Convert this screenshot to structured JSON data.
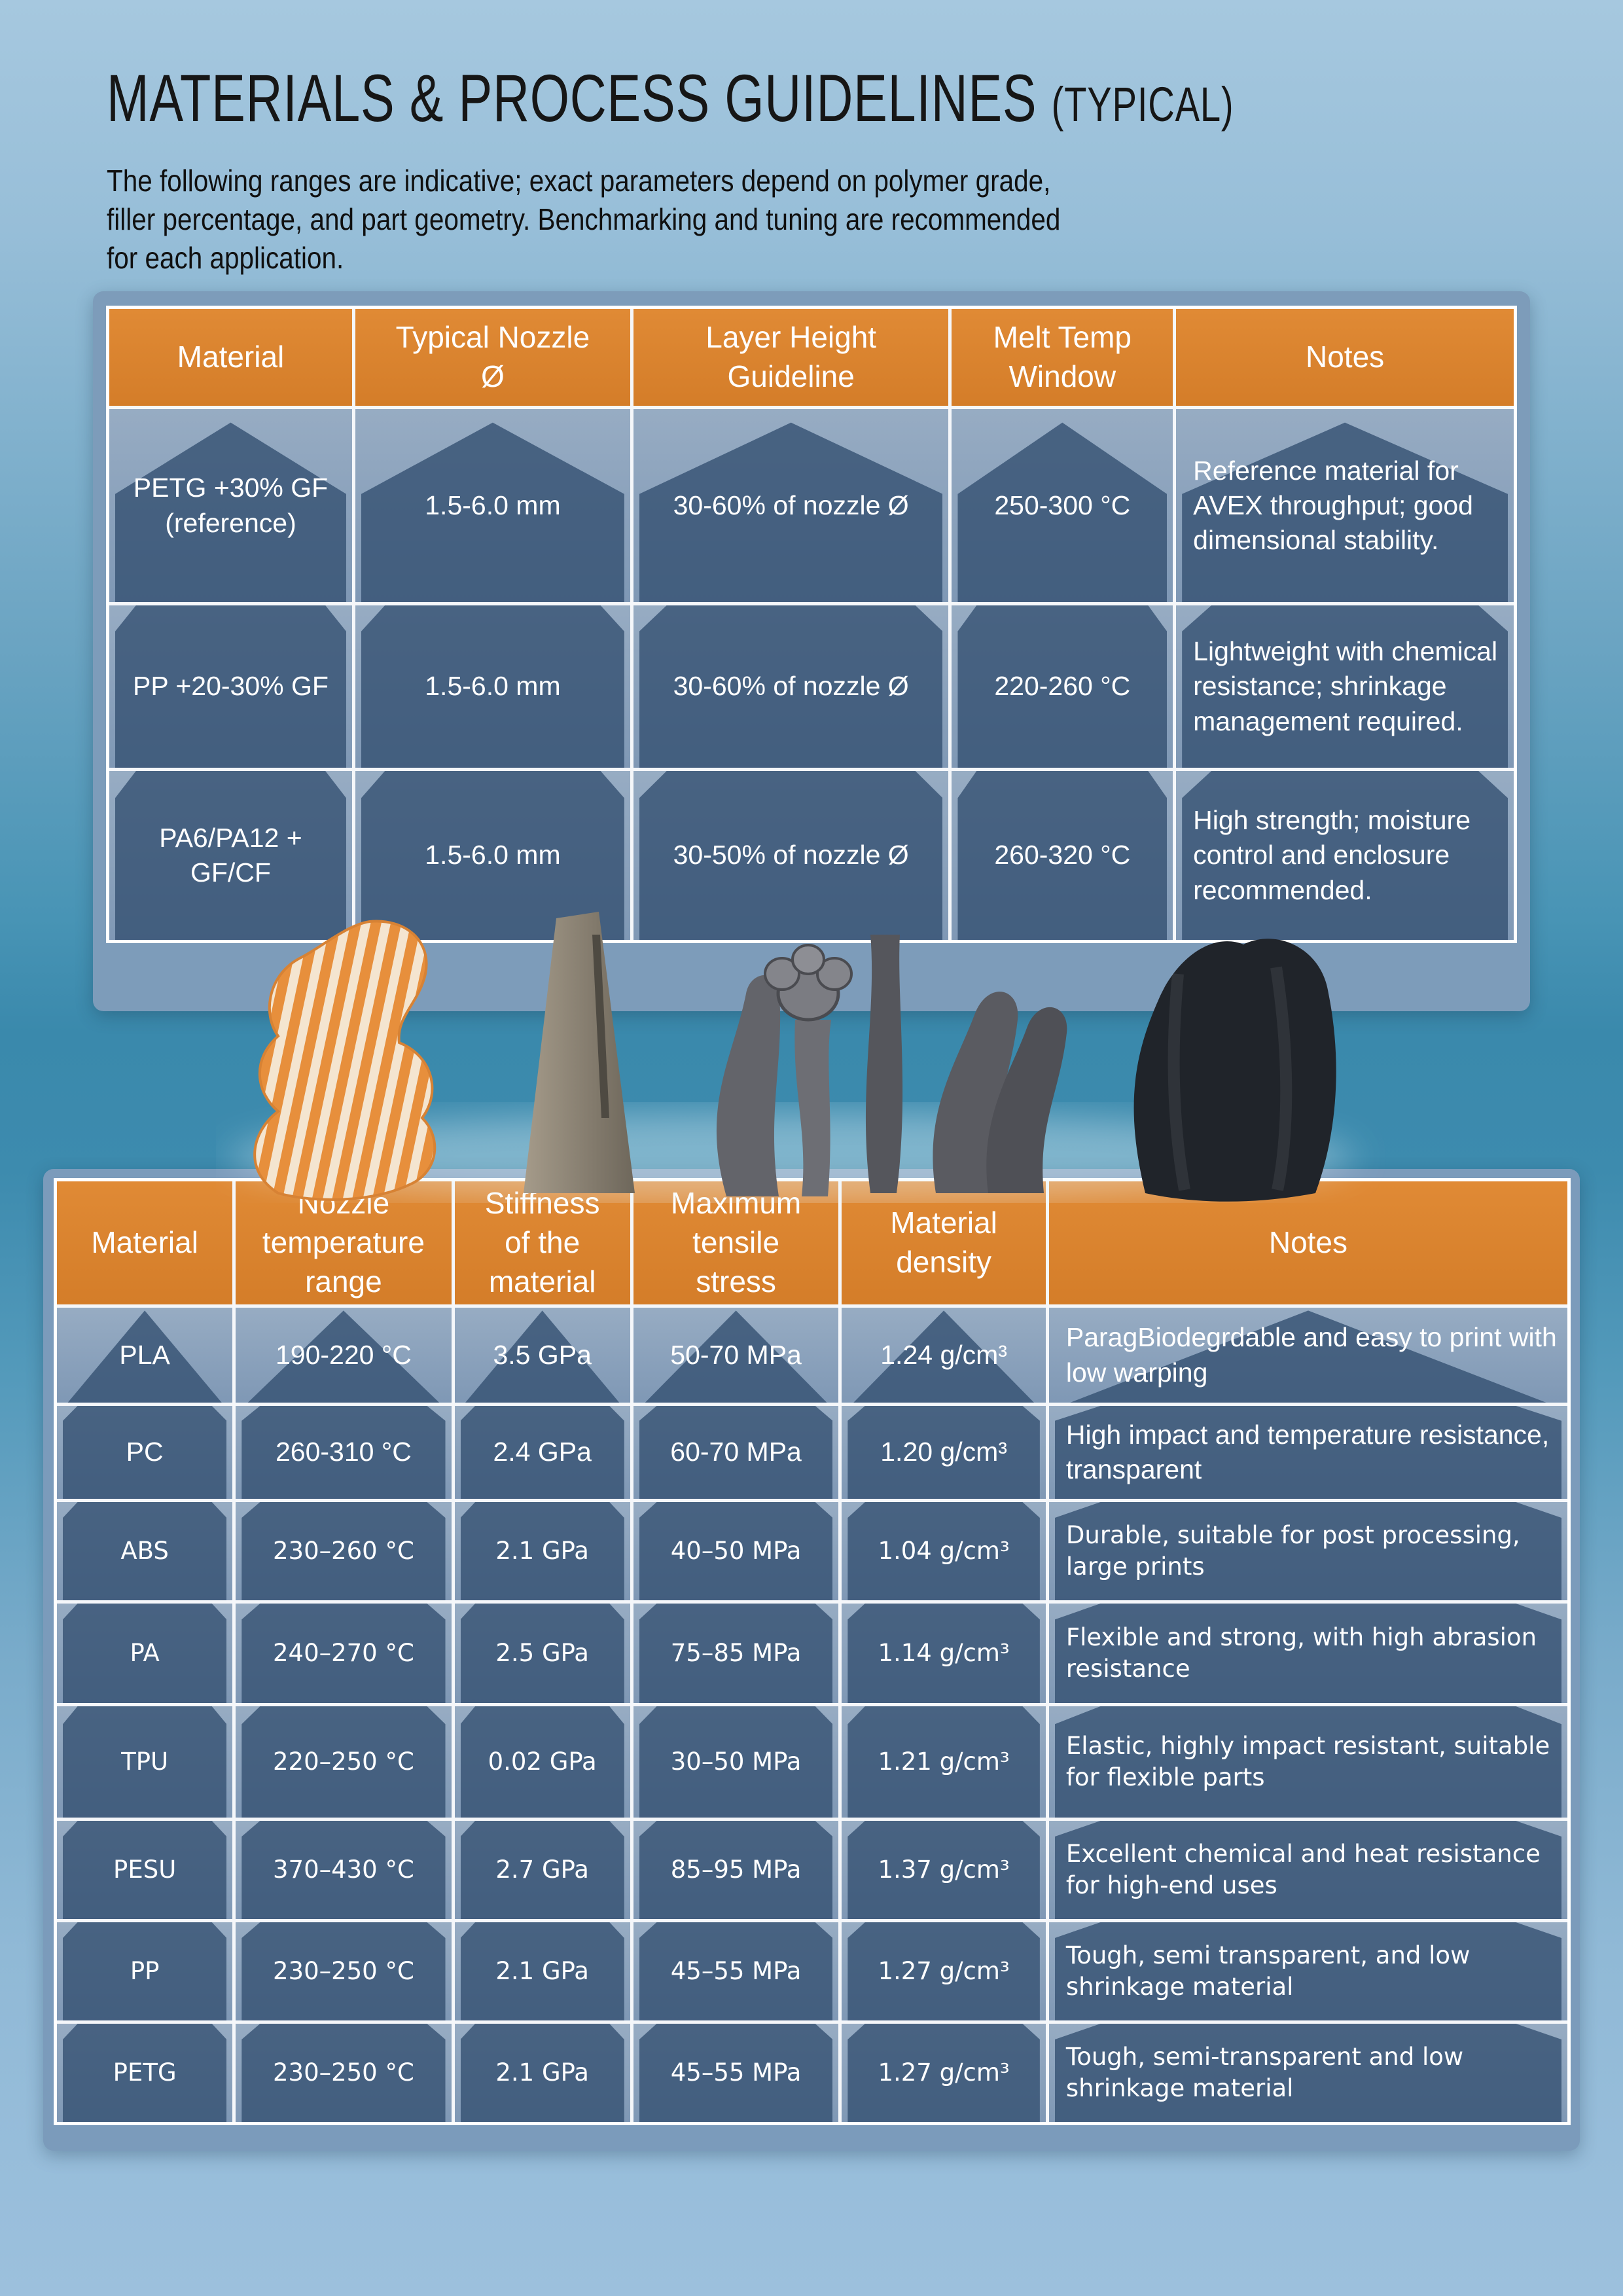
{
  "header": {
    "title": "MATERIALS & PROCESS GUIDELINES",
    "title_suffix": "(TYPICAL)",
    "intro_lines": [
      "The following ranges are indicative; exact parameters depend on polymer grade,",
      "filler percentage, and part geometry. Benchmarking and tuning are recommended",
      "for each application."
    ]
  },
  "process_table": {
    "headers": [
      "Material",
      "Typical Nozzle\nØ",
      "Layer Height\nGuideline",
      "Melt Temp\nWindow",
      "Notes"
    ],
    "rows": [
      {
        "material": "PETG +30% GF (reference)",
        "nozzle": "1.5-6.0 mm",
        "layer": "30-60% of nozzle Ø",
        "melt": "250-300 °C",
        "notes": "Reference material for AVEX throughput; good dimensional stability."
      },
      {
        "material": "PP +20-30% GF",
        "nozzle": "1.5-6.0 mm",
        "layer": "30-60% of nozzle Ø",
        "melt": "220-260 °C",
        "notes": "Lightweight with chemical resistance; shrinkage management required."
      },
      {
        "material": "PA6/PA12 + GF/CF",
        "nozzle": "1.5-6.0 mm",
        "layer": "30-50% of nozzle Ø",
        "melt": "260-320 °C",
        "notes": "High strength; moisture control and enclosure recommended."
      }
    ]
  },
  "materials_table": {
    "headers": [
      "Material",
      "Nozzle\ntemperature\nrange",
      "Stiffness\nof the\nmaterial",
      "Maximum\ntensile\nstress",
      "Material\ndensity",
      "Notes"
    ],
    "rows": [
      {
        "material": "PLA",
        "temp": "190-220 °C",
        "stiffness": "3.5 GPa",
        "stress": "50-70 MPa",
        "density": "1.24 g/cm³",
        "notes": "ParagBiodegrdable and easy to print with low warping"
      },
      {
        "material": "PC",
        "temp": "260-310 °C",
        "stiffness": "2.4 GPa",
        "stress": "60-70 MPa",
        "density": "1.20 g/cm³",
        "notes": "High impact and temperature resistance, transparent"
      },
      {
        "material": "ABS",
        "temp": "230–260 °C",
        "stiffness": "2.1 GPa",
        "stress": "40–50 MPa",
        "density": "1.04 g/cm³",
        "notes": "Durable, suitable for post processing, large prints"
      },
      {
        "material": "PA",
        "temp": "240–270 °C",
        "stiffness": "2.5 GPa",
        "stress": "75–85 MPa",
        "density": "1.14 g/cm³",
        "notes": "Flexible and strong, with high abrasion resistance"
      },
      {
        "material": "TPU",
        "temp": "220–250 °C",
        "stiffness": "0.02 GPa",
        "stress": "30–50 MPa",
        "density": "1.21 g/cm³",
        "notes": "Elastic, highly impact resistant, suitable for flexible parts"
      },
      {
        "material": "PESU",
        "temp": "370–430 °C",
        "stiffness": "2.7 GPa",
        "stress": "85–95 MPa",
        "density": "1.37 g/cm³",
        "notes": "Excellent chemical and heat resistance for high-end uses"
      },
      {
        "material": "PP",
        "temp": "230–250 °C",
        "stiffness": "2.1 GPa",
        "stress": "45–55 MPa",
        "density": "1.27 g/cm³",
        "notes": "Tough, semi transparent, and low shrinkage material"
      },
      {
        "material": "PETG",
        "temp": "230–250 °C",
        "stiffness": "2.1 GPa",
        "stress": "45–55 MPa",
        "density": "1.27 g/cm³",
        "notes": "Tough, semi-transparent and low shrinkage material"
      }
    ]
  },
  "colors": {
    "header_orange": "#d9832f",
    "cell_light_blue": "#8ea6bf",
    "cell_dark_blue": "#456b90",
    "panel_gray_blue": "#7d9cba",
    "background_teal": "#3a89ac",
    "background_light_blue": "#9cc0dd",
    "text_white": "#ffffff",
    "text_dark": "#161616"
  }
}
